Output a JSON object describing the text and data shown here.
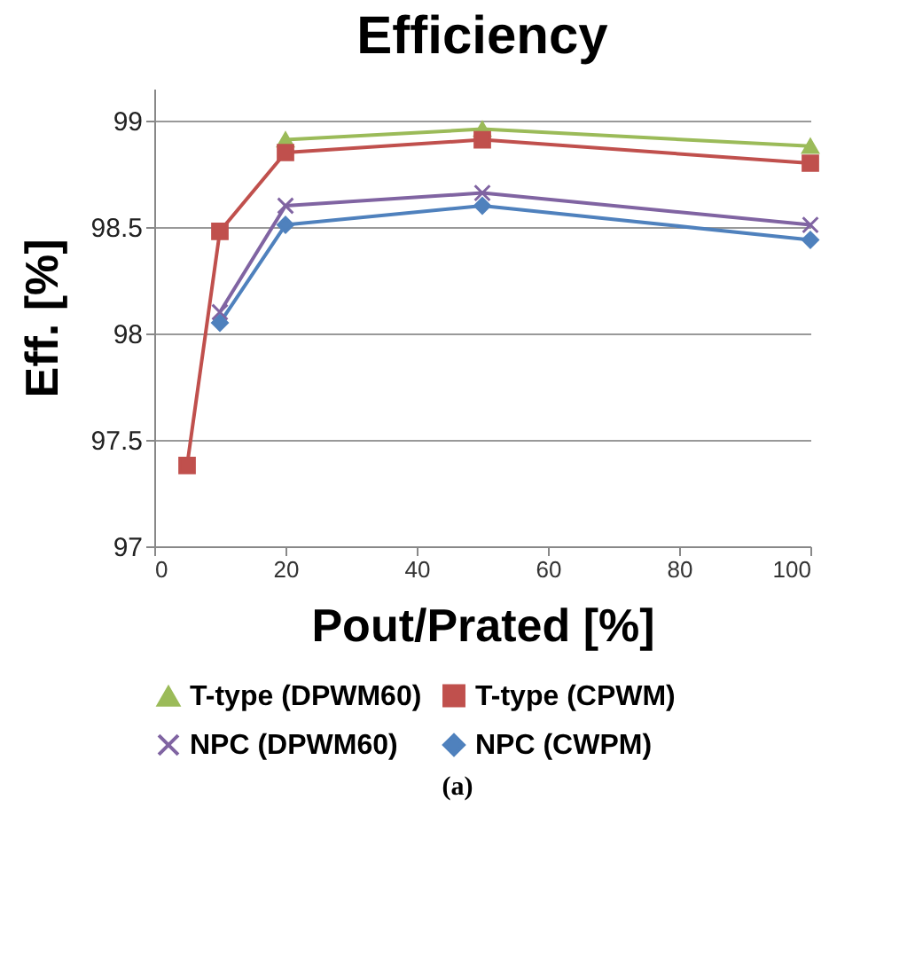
{
  "chart_data": {
    "type": "line",
    "title": "Efficiency",
    "xlabel": "Pout/Prated  [%]",
    "ylabel": "Eff.  [%]",
    "x": [
      5,
      10,
      20,
      50,
      100
    ],
    "series": [
      {
        "name": "T-type (DPWM60)",
        "color": "#9bbb59",
        "marker": "triangle",
        "values": [
          null,
          null,
          98.91,
          98.96,
          98.88
        ]
      },
      {
        "name": "T-type (CPWM)",
        "color": "#c0504d",
        "marker": "square",
        "values": [
          97.38,
          98.48,
          98.85,
          98.91,
          98.8
        ]
      },
      {
        "name": "NPC (DPWM60)",
        "color": "#8064a2",
        "marker": "cross",
        "values": [
          null,
          98.1,
          98.6,
          98.66,
          98.51
        ]
      },
      {
        "name": "NPC (CWPM)",
        "color": "#4f81bd",
        "marker": "diamond",
        "values": [
          null,
          98.05,
          98.51,
          98.6,
          98.44
        ]
      }
    ],
    "xlim": [
      0,
      100
    ],
    "xticks": [
      0,
      20,
      40,
      60,
      80,
      100
    ],
    "ylim": [
      97,
      99.15
    ],
    "yticks": [
      97,
      97.5,
      98,
      98.5,
      99
    ],
    "grid": "y",
    "legend": "bottom",
    "line_style": "solid",
    "annotations": [
      "(a)"
    ]
  }
}
